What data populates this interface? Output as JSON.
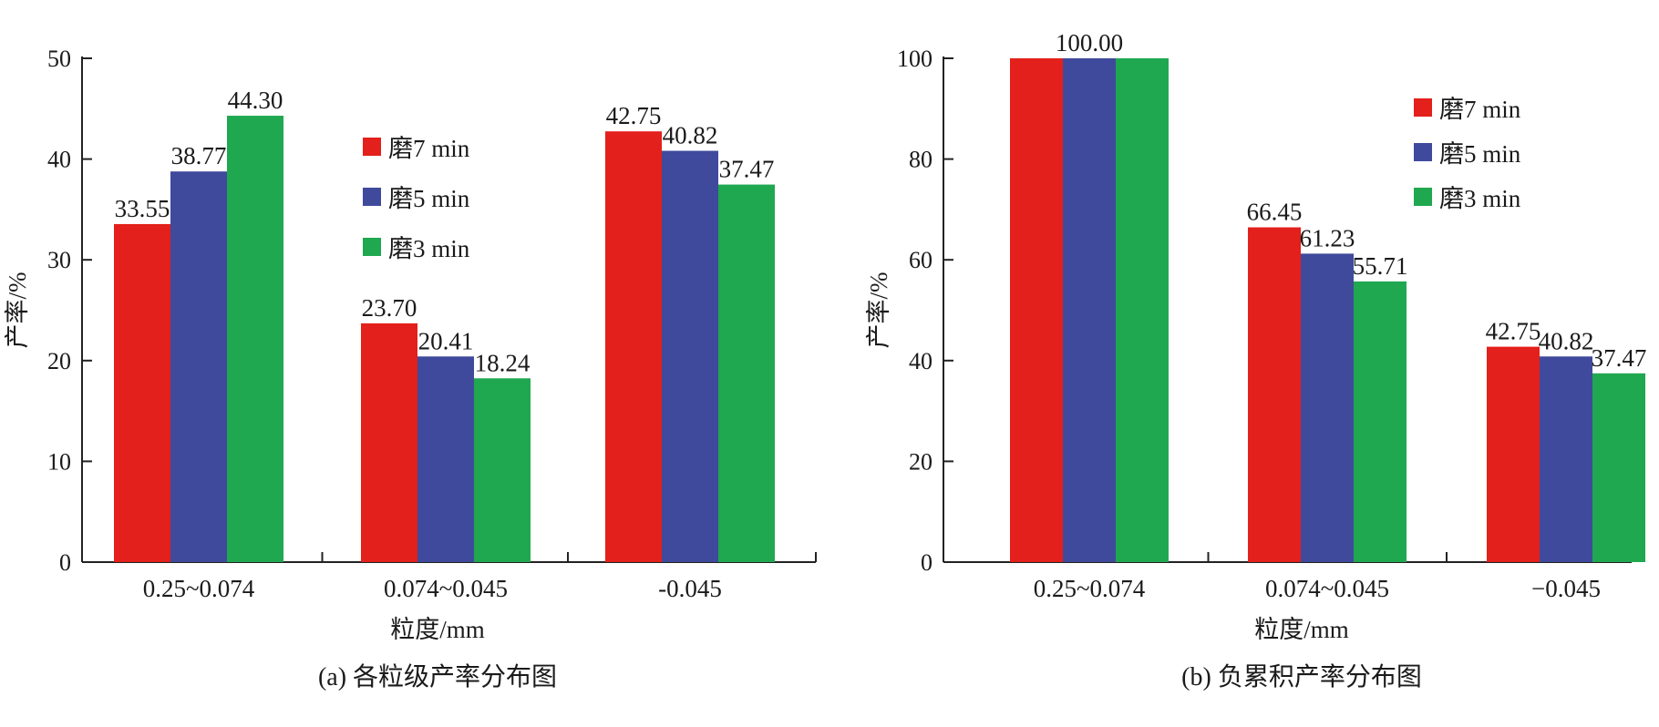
{
  "chart_data": [
    {
      "type": "bar",
      "caption": "(a) 各粒级产率分布图",
      "xlabel": "粒度/mm",
      "ylabel": "产率/%",
      "ylim": [
        0,
        50
      ],
      "yticks": [
        0,
        10,
        20,
        30,
        40,
        50
      ],
      "categories": [
        "0.25~0.074",
        "0.074~0.045",
        "-0.045"
      ],
      "series": [
        {
          "name": "磨7 min",
          "color": "#e3201b",
          "values": [
            33.55,
            23.7,
            42.75
          ],
          "labels": [
            "33.55",
            "23.70",
            "42.75"
          ]
        },
        {
          "name": "磨5 min",
          "color": "#3f4a9c",
          "values": [
            38.77,
            20.41,
            40.82
          ],
          "labels": [
            "38.77",
            "20.41",
            "40.82"
          ]
        },
        {
          "name": "磨3 min",
          "color": "#1fa84f",
          "values": [
            44.3,
            18.24,
            37.47
          ],
          "labels": [
            "44.30",
            "18.24",
            "37.47"
          ]
        }
      ],
      "legend_position": "upper-middle",
      "grid": false
    },
    {
      "type": "bar",
      "caption": "(b) 负累积产率分布图",
      "xlabel": "粒度/mm",
      "ylabel": "产率/%",
      "ylim": [
        0,
        100
      ],
      "yticks": [
        0,
        20,
        40,
        60,
        80,
        100
      ],
      "categories": [
        "0.25~0.074",
        "0.074~0.045",
        "−0.045"
      ],
      "series": [
        {
          "name": "磨7 min",
          "color": "#e3201b",
          "values": [
            100.0,
            66.45,
            42.75
          ],
          "labels": [
            "",
            "66.45",
            "42.75"
          ]
        },
        {
          "name": "磨5 min",
          "color": "#3f4a9c",
          "values": [
            100.0,
            61.23,
            40.82
          ],
          "labels": [
            "100.00",
            "61.23",
            "40.82"
          ]
        },
        {
          "name": "磨3 min",
          "color": "#1fa84f",
          "values": [
            100.0,
            55.71,
            37.47
          ],
          "labels": [
            "",
            "55.71",
            "37.47"
          ]
        }
      ],
      "legend_position": "top-right",
      "grid": false
    }
  ]
}
